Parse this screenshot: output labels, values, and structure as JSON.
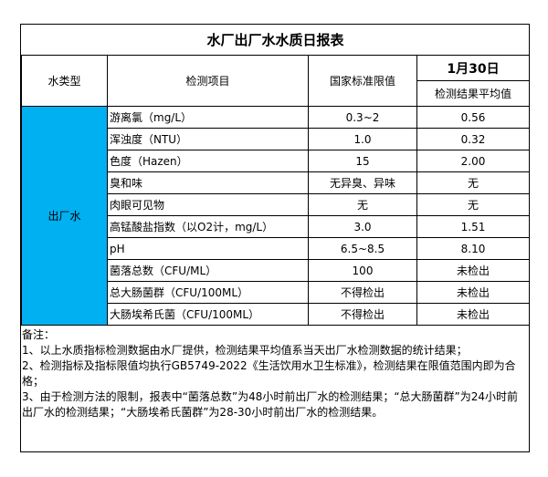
{
  "title": "水厂出厂水水质日报表",
  "header": {
    "water_type": "水类型",
    "item": "检测项目",
    "limit": "国家标准限值",
    "date": "1月30日",
    "result": "检测结果平均值"
  },
  "water_type_value": "出厂水",
  "rows": [
    {
      "item": "游离氯（mg/L）",
      "limit": "0.3~2",
      "result": "0.56"
    },
    {
      "item": "浑浊度（NTU）",
      "limit": "1.0",
      "result": "0.32"
    },
    {
      "item": "色度（Hazen）",
      "limit": "15",
      "result": "2.00"
    },
    {
      "item": "臭和味",
      "limit": "无异臭、异味",
      "result": "无"
    },
    {
      "item": "肉眼可见物",
      "limit": "无",
      "result": "无"
    },
    {
      "item": "高锰酸盐指数（以O2计，mg/L）",
      "limit": "3.0",
      "result": "1.51"
    },
    {
      "item": "pH",
      "limit": "6.5~8.5",
      "result": "8.10"
    },
    {
      "item": "菌落总数（CFU/ML）",
      "limit": "100",
      "result": "未检出"
    },
    {
      "item": "总大肠菌群（CFU/100ML）",
      "limit": "不得检出",
      "result": "未检出"
    },
    {
      "item": "大肠埃希氏菌（CFU/100ML）",
      "limit": "不得检出",
      "result": "未检出"
    }
  ],
  "notes": {
    "heading": "备注：",
    "lines": [
      "1、以上水质指标检测数据由水厂提供，检测结果平均值系当天出厂水检测数据的统计结果；",
      "2、检测指标及指标限值均执行GB5749-2022《生活饮用水卫生标准》，检测结果在限值范围内即为合格；",
      "3、由于检测方法的限制，报表中“菌落总数”为48小时前出厂水的检测结果；“总大肠菌群”为24小时前出厂水的检测结果；“大肠埃希氏菌群”为28-30小时前出厂水的检测结果。"
    ]
  },
  "colors": {
    "water_type_cell": "#00B0F0"
  }
}
